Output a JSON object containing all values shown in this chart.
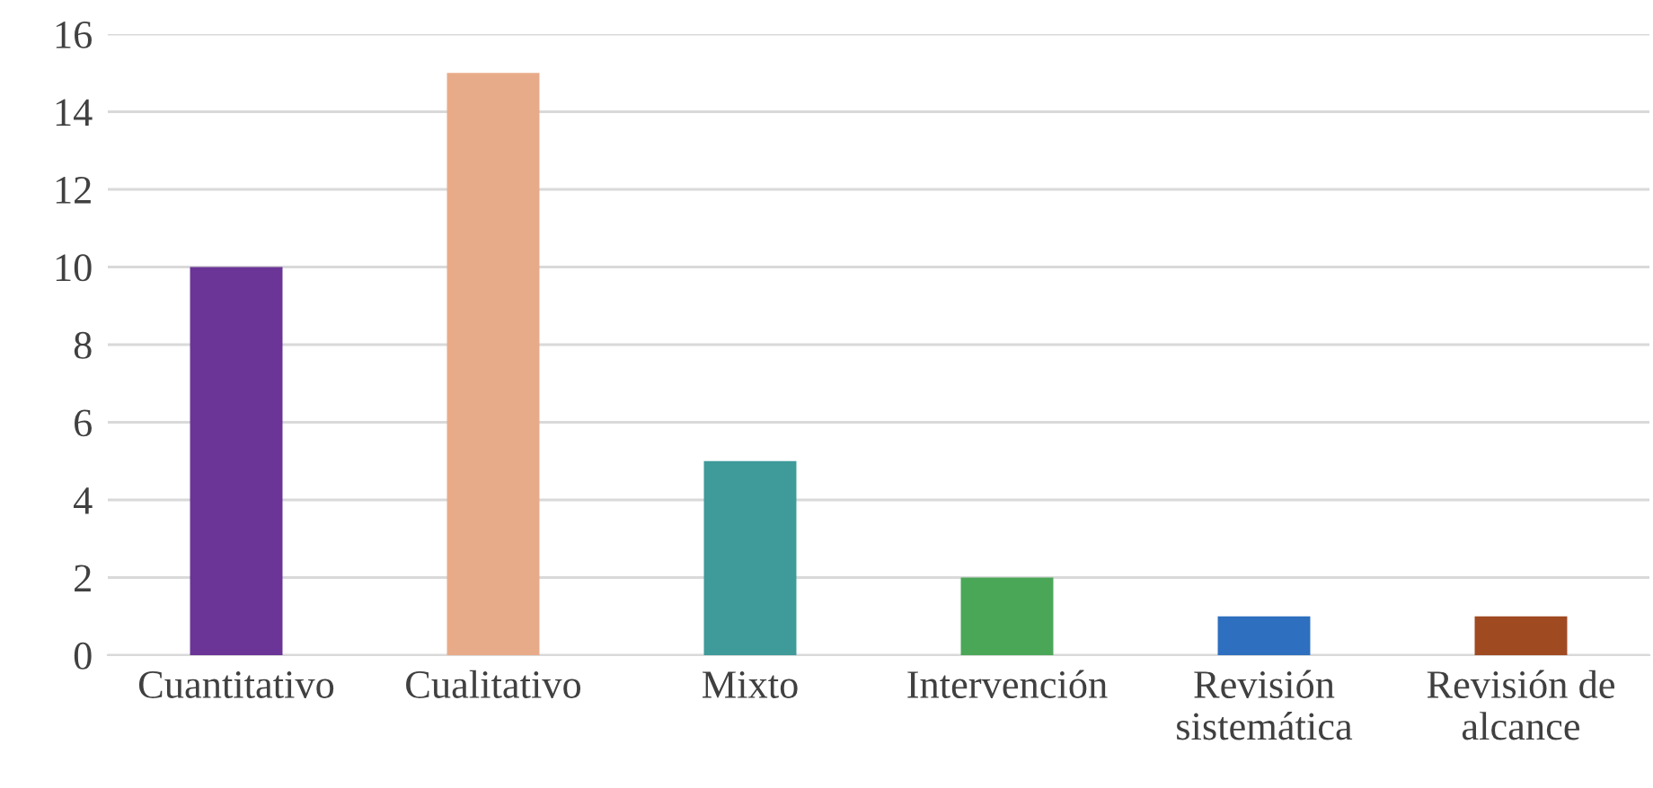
{
  "chart_data": {
    "type": "bar",
    "categories": [
      "Cuantitativo",
      "Cualitativo",
      "Mixto",
      "Intervención",
      "Revisión\nsistemática",
      "Revisión de\nalcance"
    ],
    "values": [
      10,
      15,
      5,
      2,
      1,
      1
    ],
    "colors": [
      "#6a3596",
      "#e8ab89",
      "#3f9a9a",
      "#4aa757",
      "#2e6fbf",
      "#a04a22"
    ],
    "ylim": [
      0,
      16
    ],
    "yticks": [
      0,
      2,
      4,
      6,
      8,
      10,
      12,
      14,
      16
    ],
    "grid": "y",
    "legend": false
  }
}
